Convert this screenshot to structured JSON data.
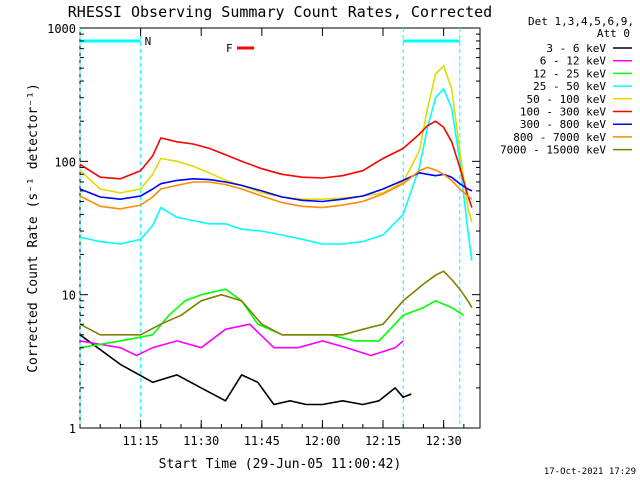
{
  "chart_data": {
    "type": "line",
    "title": "RHESSI Observing Summary Count Rates, Corrected",
    "xlabel": "Start Time (29-Jun-05 11:00:42)",
    "ylabel": "Corrected Count Rate (s⁻¹ detector⁻¹)",
    "yscale": "log",
    "ylim": [
      1,
      1000
    ],
    "xlim_minutes": [
      0,
      99
    ],
    "x_ticks": [
      {
        "min": 15,
        "label": "11:15"
      },
      {
        "min": 30,
        "label": "11:30"
      },
      {
        "min": 45,
        "label": "11:45"
      },
      {
        "min": 60,
        "label": "12:00"
      },
      {
        "min": 75,
        "label": "12:15"
      },
      {
        "min": 90,
        "label": "12:30"
      }
    ],
    "y_ticks": [
      {
        "value": 1,
        "label": "1"
      },
      {
        "value": 10,
        "label": "10"
      },
      {
        "value": 100,
        "label": "100"
      },
      {
        "value": 1000,
        "label": "1000"
      }
    ],
    "legend_header": [
      "Det 1,3,4,5,6,9,",
      "Att 0"
    ],
    "timestamp": "17-Oct-2021 17:29",
    "markers": [
      {
        "label": "N",
        "color": "#00ffff"
      },
      {
        "label": "F",
        "color": "#ff0000"
      }
    ],
    "series": [
      {
        "name": "3 - 6 keV",
        "color": "#000000",
        "x": [
          0,
          10,
          18,
          24,
          30,
          36,
          40,
          44,
          48,
          52,
          56,
          60,
          65,
          70,
          74,
          78,
          80,
          82
        ],
        "y": [
          5,
          3,
          2.2,
          2.5,
          2,
          1.6,
          2.5,
          2.2,
          1.5,
          1.6,
          1.5,
          1.5,
          1.6,
          1.5,
          1.6,
          2,
          1.7,
          1.8
        ]
      },
      {
        "name": "6 - 12 keV",
        "color": "#ff00ff",
        "x": [
          0,
          10,
          14,
          18,
          24,
          30,
          36,
          42,
          48,
          54,
          60,
          66,
          72,
          78,
          80
        ],
        "y": [
          4.5,
          4,
          3.5,
          4,
          4.5,
          4,
          5.5,
          6,
          4,
          4,
          4.5,
          4,
          3.5,
          4,
          4.5
        ]
      },
      {
        "name": "12 - 25 keV",
        "color": "#00ff00",
        "x": [
          0,
          10,
          18,
          22,
          26,
          30,
          36,
          40,
          44,
          50,
          56,
          62,
          68,
          74,
          80,
          85,
          88,
          92,
          95
        ],
        "y": [
          4,
          4.5,
          5,
          7,
          9,
          10,
          11,
          9,
          6,
          5,
          5,
          5,
          4.5,
          4.5,
          7,
          8,
          9,
          8,
          7
        ]
      },
      {
        "name": "25 - 50 keV",
        "color": "#00ffff",
        "x": [
          0,
          5,
          10,
          15,
          18,
          20,
          24,
          28,
          32,
          36,
          40,
          45,
          50,
          55,
          60,
          65,
          70,
          75,
          80,
          84,
          86,
          88,
          90,
          92,
          94,
          96,
          97
        ],
        "y": [
          27,
          25,
          24,
          26,
          33,
          45,
          38,
          36,
          34,
          34,
          31,
          30,
          28,
          26,
          24,
          24,
          25,
          28,
          40,
          90,
          180,
          300,
          350,
          250,
          100,
          30,
          18
        ]
      },
      {
        "name": "50 - 100 keV",
        "color": "#dddd00",
        "x": [
          0,
          5,
          10,
          15,
          18,
          20,
          24,
          28,
          32,
          36,
          40,
          45,
          50,
          55,
          60,
          65,
          70,
          75,
          80,
          84,
          86,
          88,
          90,
          92,
          94,
          96,
          97
        ],
        "y": [
          85,
          62,
          58,
          62,
          80,
          105,
          100,
          92,
          82,
          72,
          66,
          58,
          54,
          52,
          52,
          53,
          55,
          58,
          70,
          120,
          250,
          450,
          520,
          350,
          120,
          45,
          35
        ]
      },
      {
        "name": "100 - 300 keV",
        "color": "#ff0000",
        "x": [
          0,
          5,
          10,
          15,
          18,
          20,
          24,
          28,
          32,
          36,
          40,
          45,
          50,
          55,
          60,
          65,
          70,
          75,
          80,
          84,
          86,
          88,
          90,
          92,
          94,
          96,
          97
        ],
        "y": [
          95,
          76,
          74,
          85,
          110,
          150,
          140,
          135,
          125,
          112,
          100,
          88,
          80,
          76,
          75,
          78,
          85,
          105,
          125,
          160,
          185,
          200,
          180,
          140,
          90,
          55,
          45
        ]
      },
      {
        "name": "300 - 800 keV",
        "color": "#0000ff",
        "x": [
          0,
          5,
          10,
          15,
          18,
          20,
          24,
          28,
          32,
          36,
          40,
          45,
          50,
          55,
          60,
          65,
          70,
          75,
          80,
          84,
          86,
          88,
          90,
          92,
          94,
          96,
          97
        ],
        "y": [
          62,
          54,
          52,
          55,
          62,
          68,
          72,
          74,
          73,
          70,
          66,
          60,
          54,
          51,
          50,
          52,
          55,
          62,
          72,
          82,
          80,
          78,
          80,
          76,
          68,
          62,
          60
        ]
      },
      {
        "name": "800 - 7000 keV",
        "color": "#ff8c00",
        "x": [
          0,
          5,
          10,
          15,
          18,
          20,
          24,
          28,
          32,
          36,
          40,
          45,
          50,
          55,
          60,
          65,
          70,
          75,
          80,
          84,
          86,
          88,
          90,
          92,
          94,
          96,
          97
        ],
        "y": [
          55,
          46,
          44,
          47,
          54,
          62,
          66,
          70,
          70,
          67,
          62,
          55,
          49,
          46,
          45,
          47,
          50,
          57,
          68,
          85,
          90,
          86,
          80,
          72,
          62,
          55,
          52
        ]
      },
      {
        "name": "7000 - 15000 keV",
        "color": "#808000",
        "x": [
          0,
          5,
          10,
          15,
          20,
          25,
          30,
          35,
          40,
          45,
          50,
          55,
          60,
          65,
          70,
          75,
          80,
          85,
          88,
          90,
          92,
          94,
          96,
          97
        ],
        "y": [
          6,
          5,
          5,
          5,
          6,
          7,
          9,
          10,
          9,
          6,
          5,
          5,
          5,
          5,
          5.5,
          6,
          9,
          12,
          14,
          15,
          13,
          11,
          9,
          8
        ]
      }
    ]
  }
}
